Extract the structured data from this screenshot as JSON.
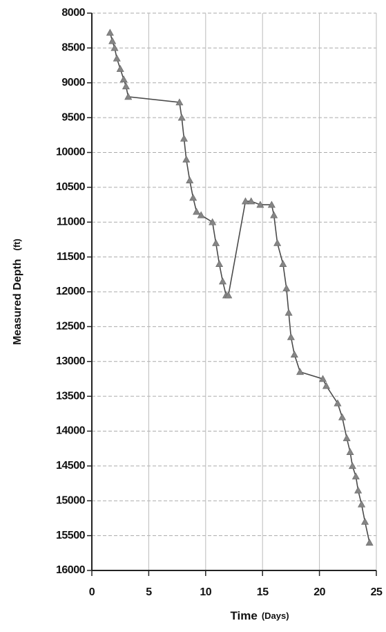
{
  "chart_data": {
    "type": "line",
    "y_label": "Measured Depth",
    "y_unit": "(ft)",
    "x_label": "Time",
    "x_unit": "(Days)",
    "x": [
      1.6,
      1.8,
      2.0,
      2.2,
      2.5,
      2.8,
      3.0,
      3.2,
      7.7,
      7.9,
      8.1,
      8.3,
      8.6,
      8.9,
      9.2,
      9.6,
      10.6,
      10.9,
      11.2,
      11.5,
      11.8,
      12.0,
      13.5,
      14.0,
      14.8,
      15.8,
      16.0,
      16.3,
      16.8,
      17.1,
      17.3,
      17.5,
      17.8,
      18.3,
      20.3,
      20.6,
      21.6,
      22.0,
      22.4,
      22.7,
      22.9,
      23.2,
      23.4,
      23.7,
      24.0,
      24.4
    ],
    "values": [
      8280,
      8400,
      8500,
      8650,
      8800,
      8950,
      9050,
      9200,
      9280,
      9500,
      9800,
      10100,
      10400,
      10650,
      10850,
      10900,
      11000,
      11300,
      11600,
      11850,
      12050,
      12050,
      10700,
      10700,
      10750,
      10750,
      10900,
      11300,
      11600,
      11950,
      12300,
      12650,
      12900,
      13150,
      13250,
      13350,
      13600,
      13800,
      14100,
      14300,
      14500,
      14650,
      14850,
      15050,
      15300,
      15600
    ],
    "color": "#858585",
    "line_color": "#4a4a4a",
    "xlim": [
      0,
      25
    ],
    "xticks": [
      0,
      5,
      10,
      15,
      20,
      25
    ],
    "ylim": [
      8000,
      16000
    ],
    "y_inverted": true,
    "yticks": [
      8000,
      8500,
      9000,
      9500,
      10000,
      10500,
      11000,
      11500,
      12000,
      12500,
      13000,
      13500,
      14000,
      14500,
      15000,
      15500,
      16000
    ],
    "grid": true
  }
}
